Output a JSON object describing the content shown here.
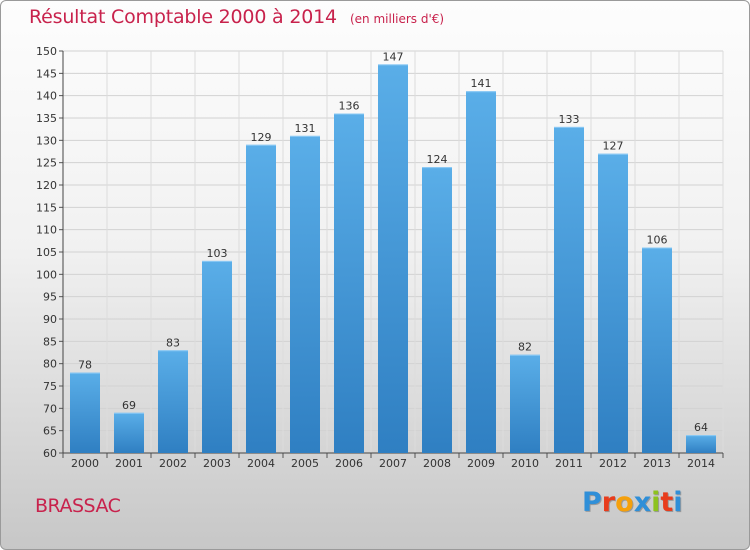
{
  "chart_data": {
    "type": "bar",
    "title": "Résultat Comptable 2000 à 2014",
    "subtitle": "(en milliers d'€)",
    "categories": [
      "2000",
      "2001",
      "2002",
      "2003",
      "2004",
      "2005",
      "2006",
      "2007",
      "2008",
      "2009",
      "2010",
      "2011",
      "2012",
      "2013",
      "2014"
    ],
    "values": [
      78,
      69,
      83,
      103,
      129,
      131,
      136,
      147,
      124,
      141,
      82,
      133,
      127,
      106,
      64
    ],
    "ylim": [
      60,
      150
    ],
    "ytick_step": 5,
    "xlabel": "",
    "ylabel": "",
    "grid": true,
    "bar_color_light": "#5aaee8",
    "bar_color_dark": "#2f7fc2"
  },
  "footer": {
    "town": "BRASSAC",
    "brand_letters": [
      "P",
      "r",
      "o",
      "x",
      "i",
      "t",
      "i"
    ],
    "brand_colors": [
      "#2f8fd8",
      "#e83c1c",
      "#f5a00c",
      "#2f8fd8",
      "#8dc21f",
      "#e83c1c",
      "#2f8fd8"
    ]
  }
}
